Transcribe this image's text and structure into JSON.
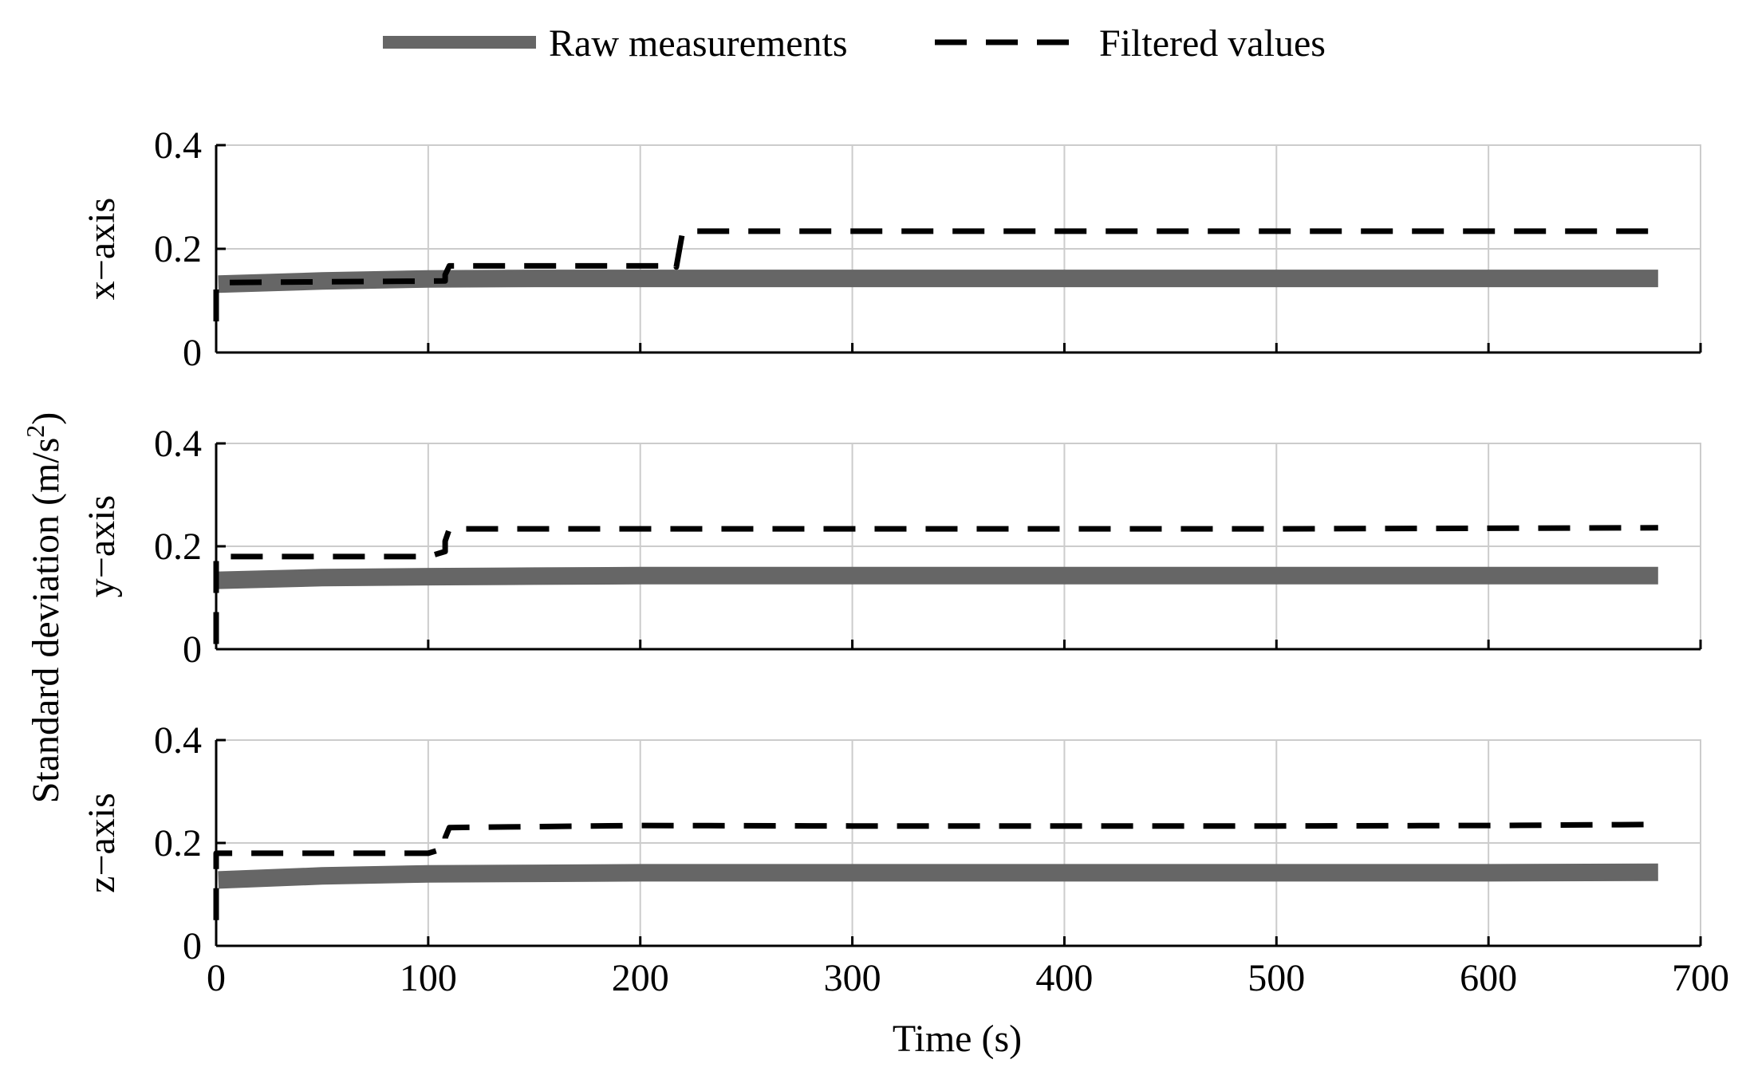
{
  "legend": {
    "placement": "top-center",
    "raw_label": "Raw measurements",
    "filtered_label": "Filtered values"
  },
  "colors": {
    "raw": "#666666",
    "filtered": "#000000",
    "grid": "#cccccc",
    "axis": "#000000"
  },
  "shared_ylabel": "Standard deviation (m/s",
  "shared_ylabel_superscript": "2",
  "shared_ylabel_close": ")",
  "xlabel": "Time (s)",
  "x_ticks": [
    "0",
    "100",
    "200",
    "300",
    "400",
    "500",
    "600",
    "700"
  ],
  "y_ticks": [
    "0",
    "0.2",
    "0.4"
  ],
  "chart_data": [
    {
      "type": "line",
      "panel_label": "x−axis",
      "xlim": [
        0,
        700
      ],
      "ylim": [
        0,
        0.4
      ],
      "grid": true,
      "series": [
        {
          "name": "Raw measurements",
          "style": "solid-thick",
          "x": [
            1,
            50,
            100,
            150,
            200,
            300,
            400,
            500,
            600,
            680
          ],
          "y": [
            0.132,
            0.138,
            0.142,
            0.143,
            0.143,
            0.143,
            0.143,
            0.143,
            0.143,
            0.143
          ]
        },
        {
          "name": "Filtered values",
          "style": "dashed",
          "x": [
            0,
            0,
            1,
            108,
            108,
            110,
            217,
            217,
            220,
            680
          ],
          "y": [
            0.06,
            0.13,
            0.135,
            0.138,
            0.15,
            0.167,
            0.167,
            0.165,
            0.234,
            0.234
          ]
        }
      ]
    },
    {
      "type": "line",
      "panel_label": "y−axis",
      "xlim": [
        0,
        700
      ],
      "ylim": [
        0,
        0.4
      ],
      "grid": true,
      "series": [
        {
          "name": "Raw measurements",
          "style": "solid-thick",
          "x": [
            1,
            50,
            100,
            150,
            200,
            300,
            400,
            500,
            600,
            680
          ],
          "y": [
            0.134,
            0.139,
            0.141,
            0.142,
            0.143,
            0.143,
            0.143,
            0.143,
            0.143,
            0.143
          ]
        },
        {
          "name": "Filtered values",
          "style": "dashed",
          "x": [
            0,
            0,
            1,
            100,
            108,
            108,
            110,
            200,
            300,
            400,
            500,
            600,
            680
          ],
          "y": [
            0.01,
            0.18,
            0.18,
            0.18,
            0.19,
            0.21,
            0.234,
            0.234,
            0.234,
            0.234,
            0.234,
            0.235,
            0.236
          ]
        }
      ]
    },
    {
      "type": "line",
      "panel_label": "z−axis",
      "xlim": [
        0,
        700
      ],
      "ylim": [
        0,
        0.4
      ],
      "grid": true,
      "series": [
        {
          "name": "Raw measurements",
          "style": "solid-thick",
          "x": [
            1,
            50,
            100,
            150,
            200,
            300,
            400,
            500,
            600,
            680
          ],
          "y": [
            0.128,
            0.136,
            0.14,
            0.141,
            0.142,
            0.142,
            0.142,
            0.142,
            0.142,
            0.143
          ]
        },
        {
          "name": "Filtered values",
          "style": "dashed",
          "x": [
            0,
            0,
            1,
            100,
            108,
            108,
            110,
            200,
            300,
            400,
            500,
            600,
            680
          ],
          "y": [
            0.05,
            0.18,
            0.18,
            0.18,
            0.19,
            0.21,
            0.23,
            0.234,
            0.233,
            0.233,
            0.233,
            0.234,
            0.236
          ]
        }
      ]
    }
  ]
}
